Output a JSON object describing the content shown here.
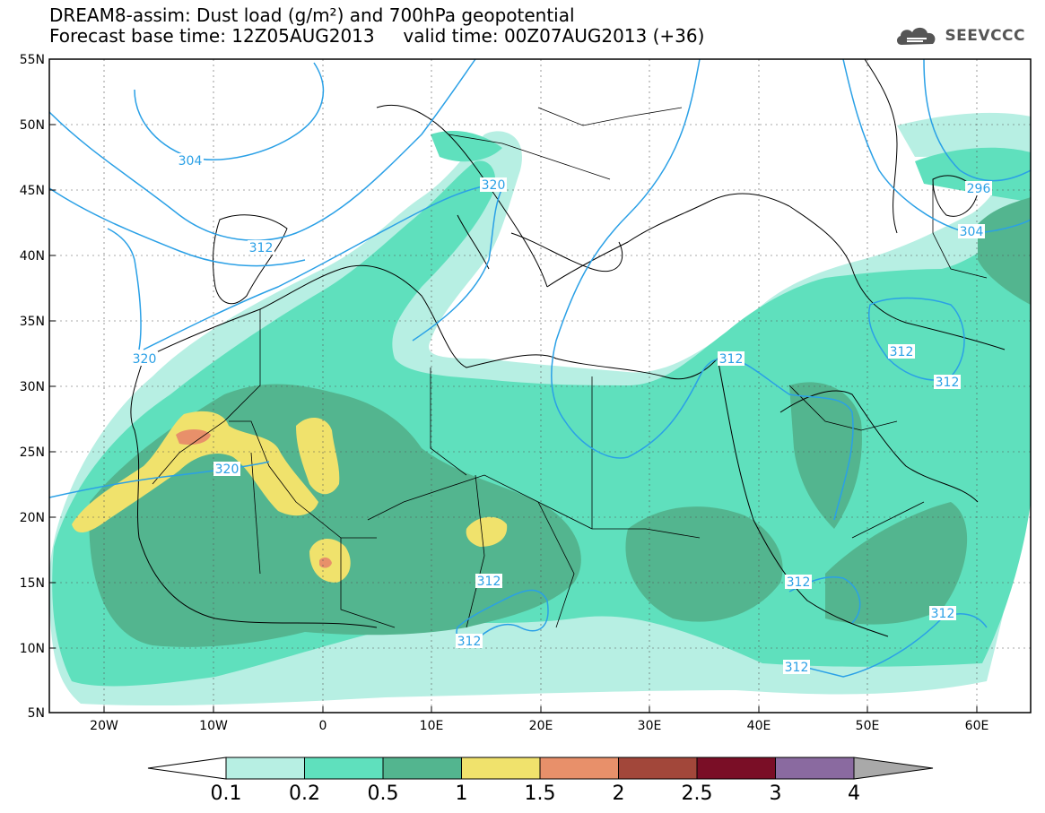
{
  "header": {
    "title_line1": "DREAM8-assim: Dust load (g/m²) and 700hPa geopotential",
    "title_line2": "Forecast base time: 12Z05AUG2013     valid time: 00Z07AUG2013 (+36)",
    "logo_text": "SEEVCCC"
  },
  "axes": {
    "lat_labels": [
      "55N",
      "50N",
      "45N",
      "40N",
      "35N",
      "30N",
      "25N",
      "20N",
      "15N",
      "10N",
      "5N"
    ],
    "lon_labels": [
      "20W",
      "10W",
      "0",
      "10E",
      "20E",
      "30E",
      "40E",
      "50E",
      "60E"
    ]
  },
  "contour_labels": [
    "304",
    "312",
    "320",
    "320",
    "320",
    "312",
    "312",
    "312",
    "312",
    "312",
    "312",
    "312",
    "304",
    "296",
    "312",
    "312"
  ],
  "colorbar": {
    "levels": [
      "0.1",
      "0.2",
      "0.5",
      "1",
      "1.5",
      "2",
      "2.5",
      "3",
      "4"
    ],
    "colors": [
      "#b7efe3",
      "#5fe0bd",
      "#53b58f",
      "#f0e26c",
      "#e8906a",
      "#a2473a",
      "#7a0e26",
      "#8a6aa0",
      "#a9a9a9"
    ]
  },
  "colors": {
    "dust_low": "#b7efe3",
    "dust_mid": "#5fe0bd",
    "dust_high": "#53b58f",
    "dust_veryhigh": "#f0e26c",
    "dust_peak": "#e8906a",
    "geopotential_line": "#2aa0e6"
  }
}
